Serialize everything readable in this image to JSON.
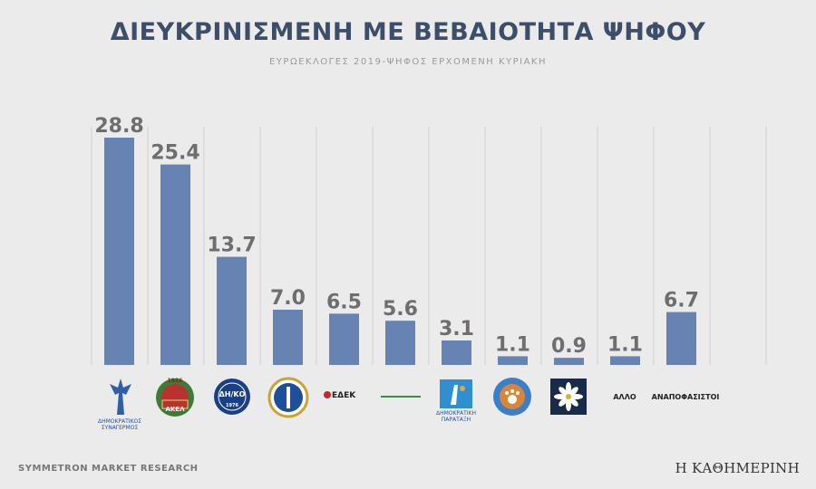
{
  "title": "ΔΙΕΥΚΡΙΝΙΣΜΕΝΗ ΜΕ ΒΕΒΑΙΟΤΗΤΑ ΨΗΦΟΥ",
  "subtitle": "ΕΥΡΩΕΚΛΟΓΕΣ 2019-ΨΗΦΟΣ ΕΡΧΟΜΕΝΗ ΚΥΡΙΑΚΗ",
  "footer": {
    "source": "SYMMETRON MARKET RESEARCH",
    "publisher": "Η ΚΑΘΗΜΕΡΙΝΗ"
  },
  "colors": {
    "bar": "#6783b3",
    "background": "#ebebeb",
    "gridline": "#cfcfcf",
    "title": "#3d4e68"
  },
  "logos": {
    "disy": {
      "line1": "ΔΗΜΟΚΡΑΤΙΚΟΣ",
      "line2": "ΣΥΝΑΓΕΡΜΟΣ",
      "icon": "winged-figure-icon"
    },
    "akel": {
      "year": "1926",
      "name": "ΑΚΕΛ",
      "icon": "wreath-emblem-icon"
    },
    "diko": {
      "name": "ΔΗ/ΚΟ",
      "year": "1976",
      "icon": "circular-badge-icon"
    },
    "elam": {
      "icon": "laurel-shield-icon"
    },
    "edek": {
      "name": "ΕΔΕΚ",
      "icon": "edek-logo-icon"
    },
    "symmaxia": {
      "icon": "text-logo-icon"
    },
    "dipa": {
      "line1": "ΔΗΜΟΚΡΑΤΙΚΗ",
      "line2": "ΠΑΡΑΤΑΞΗ",
      "icon": "figure-logo-icon"
    },
    "animals": {
      "icon": "paw-badge-icon"
    },
    "flower": {
      "icon": "flower-square-icon"
    }
  },
  "chart_data": {
    "type": "bar",
    "categories": [
      "ΔΗΜΟΚΡΑΤΙΚΟΣ ΣΥΝΑΓΕΡΜΟΣ",
      "ΑΚΕΛ",
      "ΔΗ/ΚΟ",
      "",
      "ΕΔΕΚ",
      "",
      "ΔΗΜΟΚΡΑΤΙΚΗ ΠΑΡΑΤΑΞΗ",
      "",
      "",
      "ΑΛΛΟ",
      "ΑΝΑΠΟΦΑΣΙΣΤΟΙ"
    ],
    "values": [
      28.8,
      25.4,
      13.7,
      7.0,
      6.5,
      5.6,
      3.1,
      1.1,
      0.9,
      1.1,
      6.7
    ],
    "value_labels": [
      "28.8",
      "25.4",
      "13.7",
      "7.0",
      "6.5",
      "5.6",
      "3.1",
      "1.1",
      "0.9",
      "1.1",
      "6.7"
    ],
    "ylim": [
      0,
      28.8
    ],
    "grid": "vertical",
    "title": "ΔΙΕΥΚΡΙΝΙΣΜΕΝΗ ΜΕ ΒΕΒΑΙΟΤΗΤΑ ΨΗΦΟΥ",
    "subtitle": "ΕΥΡΩΕΚΛΟΓΕΣ 2019-ΨΗΦΟΣ ΕΡΧΟΜΕΝΗ ΚΥΡΙΑΚΗ"
  }
}
